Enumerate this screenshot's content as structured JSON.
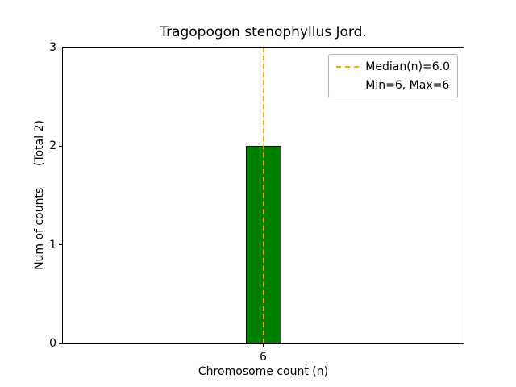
{
  "chart_data": {
    "type": "bar",
    "title": "Tragopogon stenophyllus Jord.",
    "xlabel": "Chromosome count (n)",
    "ylabel": "Num of counts      (Total 2)",
    "categories": [
      "6"
    ],
    "values": [
      2
    ],
    "ylim": [
      0,
      3
    ],
    "yticks": [
      0,
      1,
      2,
      3
    ],
    "grid": false,
    "bar_color": "#008000",
    "bar_edge_color": "#000000",
    "median_line": {
      "x": "6",
      "value": 6.0,
      "color": "#ffa500",
      "style": "dashed"
    },
    "legend": {
      "position": "upper right",
      "entries": [
        {
          "label": "Median(n)=6.0",
          "line_color": "#ffa500",
          "line_style": "dashed"
        },
        {
          "label": "Min=6, Max=6"
        }
      ]
    }
  }
}
